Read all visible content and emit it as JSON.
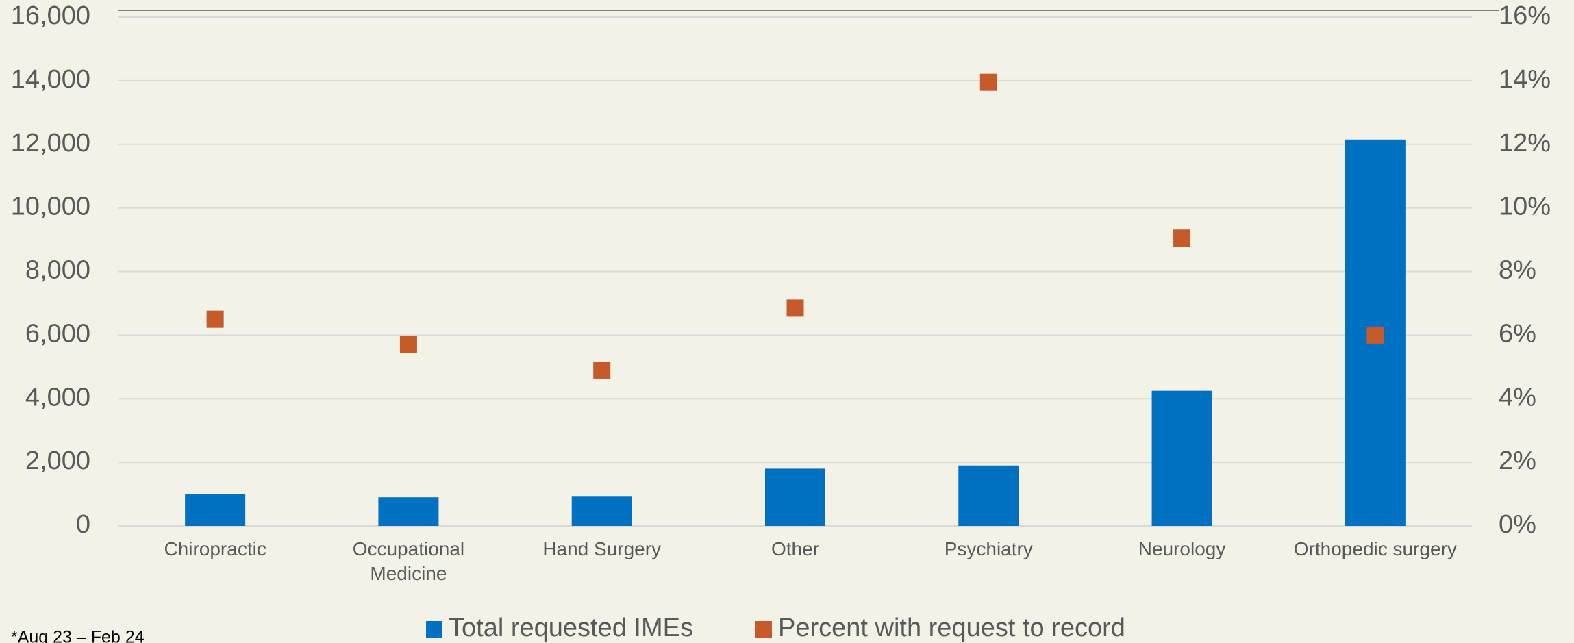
{
  "chart_data": {
    "type": "bar",
    "categories": [
      "Chiropractic",
      "Occupational Medicine",
      "Hand Surgery",
      "Other",
      "Psychiatry",
      "Neurology",
      "Orthopedic surgery"
    ],
    "series": [
      {
        "name": "Total requested IMEs",
        "type": "bar",
        "color": "#0070c0",
        "values": [
          1000,
          900,
          920,
          1800,
          1900,
          4250,
          12150
        ]
      },
      {
        "name": "Percent with request to record",
        "type": "scatter",
        "axis": "y2",
        "color": "#c55a2b",
        "values": [
          6.5,
          5.7,
          4.9,
          6.85,
          13.95,
          9.05,
          6.0
        ]
      }
    ],
    "ylim": [
      0,
      16000
    ],
    "yticks": [
      {
        "value": 0,
        "label": "0"
      },
      {
        "value": 2000,
        "label": "2,000"
      },
      {
        "value": 4000,
        "label": "4,000"
      },
      {
        "value": 6000,
        "label": "6,000"
      },
      {
        "value": 8000,
        "label": "8,000"
      },
      {
        "value": 10000,
        "label": "10,000"
      },
      {
        "value": 12000,
        "label": "12,000"
      },
      {
        "value": 14000,
        "label": "14,000"
      },
      {
        "value": 16000,
        "label": "16,000"
      }
    ],
    "y2lim": [
      0,
      16
    ],
    "y2ticks": [
      {
        "value": 0,
        "label": "0%"
      },
      {
        "value": 2,
        "label": "2%"
      },
      {
        "value": 4,
        "label": "4%"
      },
      {
        "value": 6,
        "label": "6%"
      },
      {
        "value": 8,
        "label": "8%"
      },
      {
        "value": 10,
        "label": "10%"
      },
      {
        "value": 12,
        "label": "12%"
      },
      {
        "value": 14,
        "label": "14%"
      },
      {
        "value": 16,
        "label": "16%"
      }
    ],
    "grid": true,
    "legend": "bottom",
    "footnote": "*Aug 23 – Feb 24"
  }
}
